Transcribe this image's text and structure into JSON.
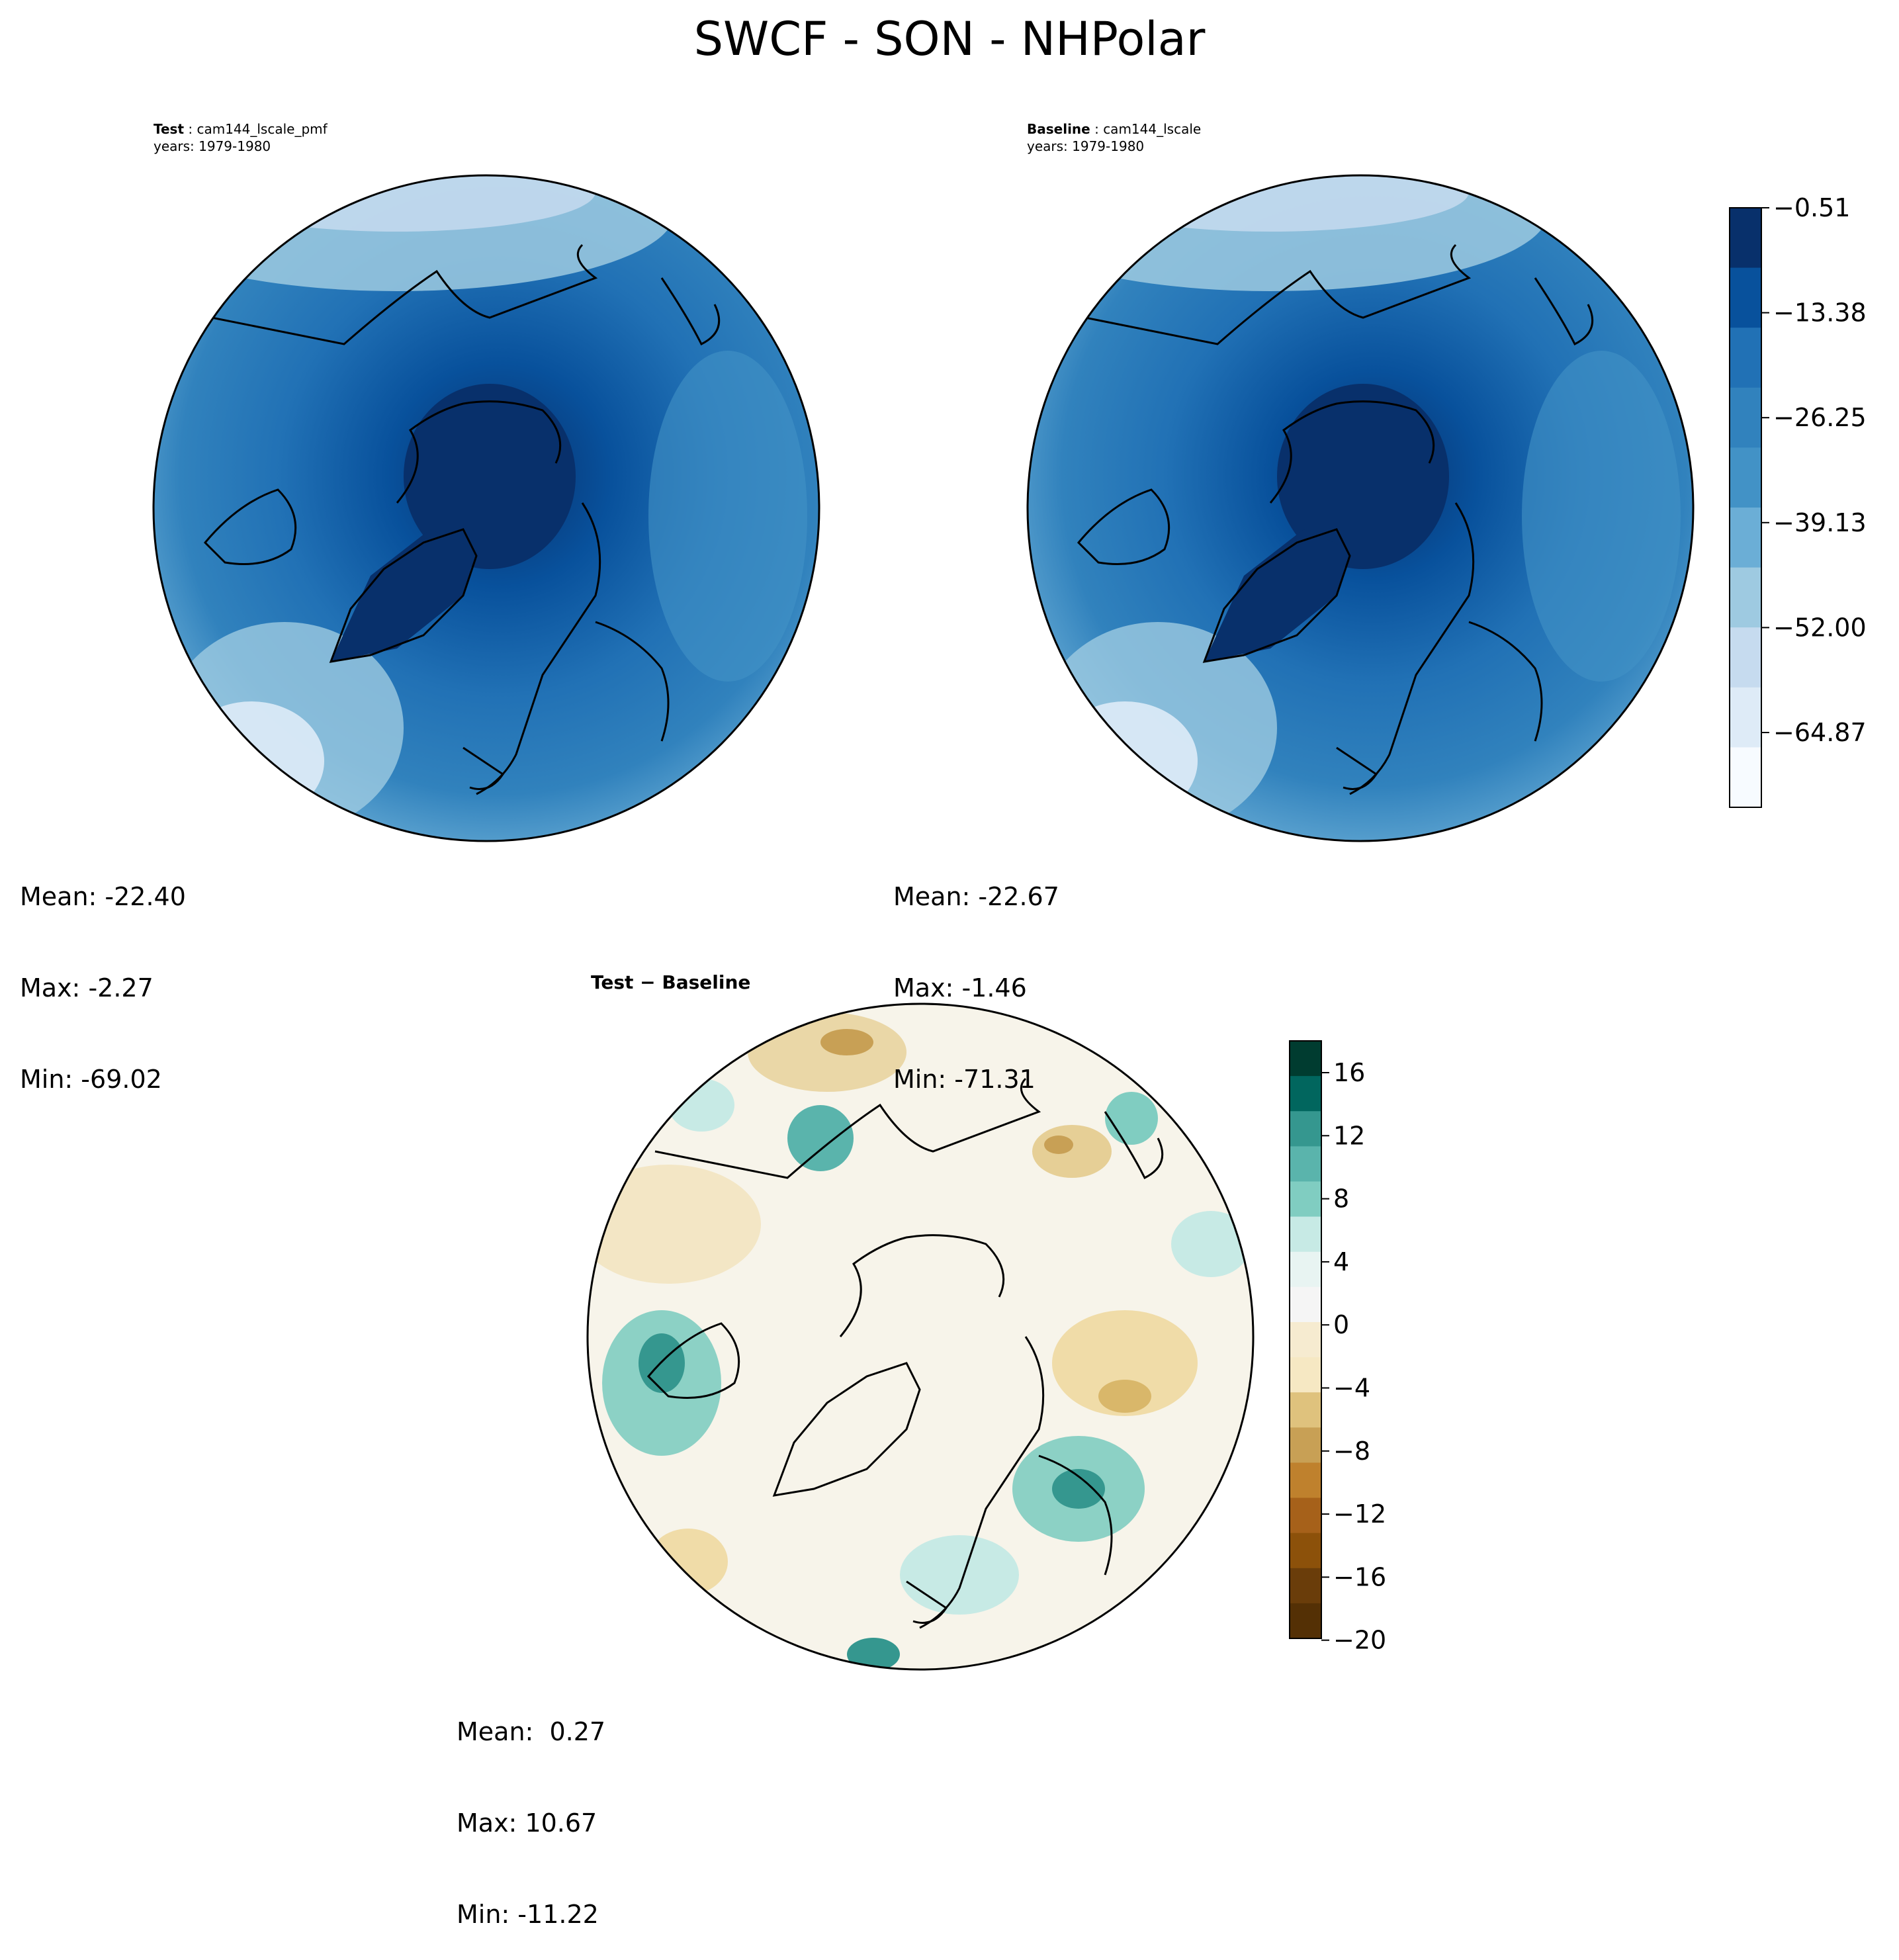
{
  "title": "SWCF - SON - NHPolar",
  "panels": {
    "test": {
      "label": "Test",
      "name": "cam144_lscale_pmf",
      "years": "years: 1979-1980",
      "stats": {
        "mean": "Mean: -22.40",
        "max": "Max: -2.27",
        "min": "Min: -69.02"
      }
    },
    "baseline": {
      "label": "Baseline",
      "name": "cam144_lscale",
      "years": "years: 1979-1980",
      "stats": {
        "mean": "Mean: -22.67",
        "max": "Max: -1.46",
        "min": "Min: -71.31"
      }
    },
    "diff": {
      "title": "Test − Baseline",
      "stats": {
        "mean": "Mean:  0.27",
        "max": "Max: 10.67",
        "min": "Min: -11.22"
      }
    }
  },
  "colorbars": {
    "top": {
      "ticks": [
        "−0.51",
        "−13.38",
        "−26.25",
        "−39.13",
        "−52.00",
        "−64.87"
      ],
      "colors": [
        "#08306b",
        "#08519c",
        "#2171b5",
        "#3182bd",
        "#4292c6",
        "#6baed6",
        "#9ecae1",
        "#c6dbef",
        "#deebf7",
        "#f7fbff"
      ]
    },
    "bottom": {
      "ticks": [
        "16",
        "12",
        "8",
        "4",
        "0",
        "−4",
        "−8",
        "−12",
        "−16",
        "−20"
      ],
      "colors": [
        "#003c30",
        "#01665e",
        "#35978f",
        "#5ab4ac",
        "#80cdc1",
        "#c7eae5",
        "#e8f4f2",
        "#f5f5f5",
        "#f6ebd0",
        "#f6e8c3",
        "#dfc27d",
        "#c8a055",
        "#bf812d",
        "#a6611a",
        "#8c510a",
        "#6a3d0a",
        "#543005"
      ]
    }
  }
}
